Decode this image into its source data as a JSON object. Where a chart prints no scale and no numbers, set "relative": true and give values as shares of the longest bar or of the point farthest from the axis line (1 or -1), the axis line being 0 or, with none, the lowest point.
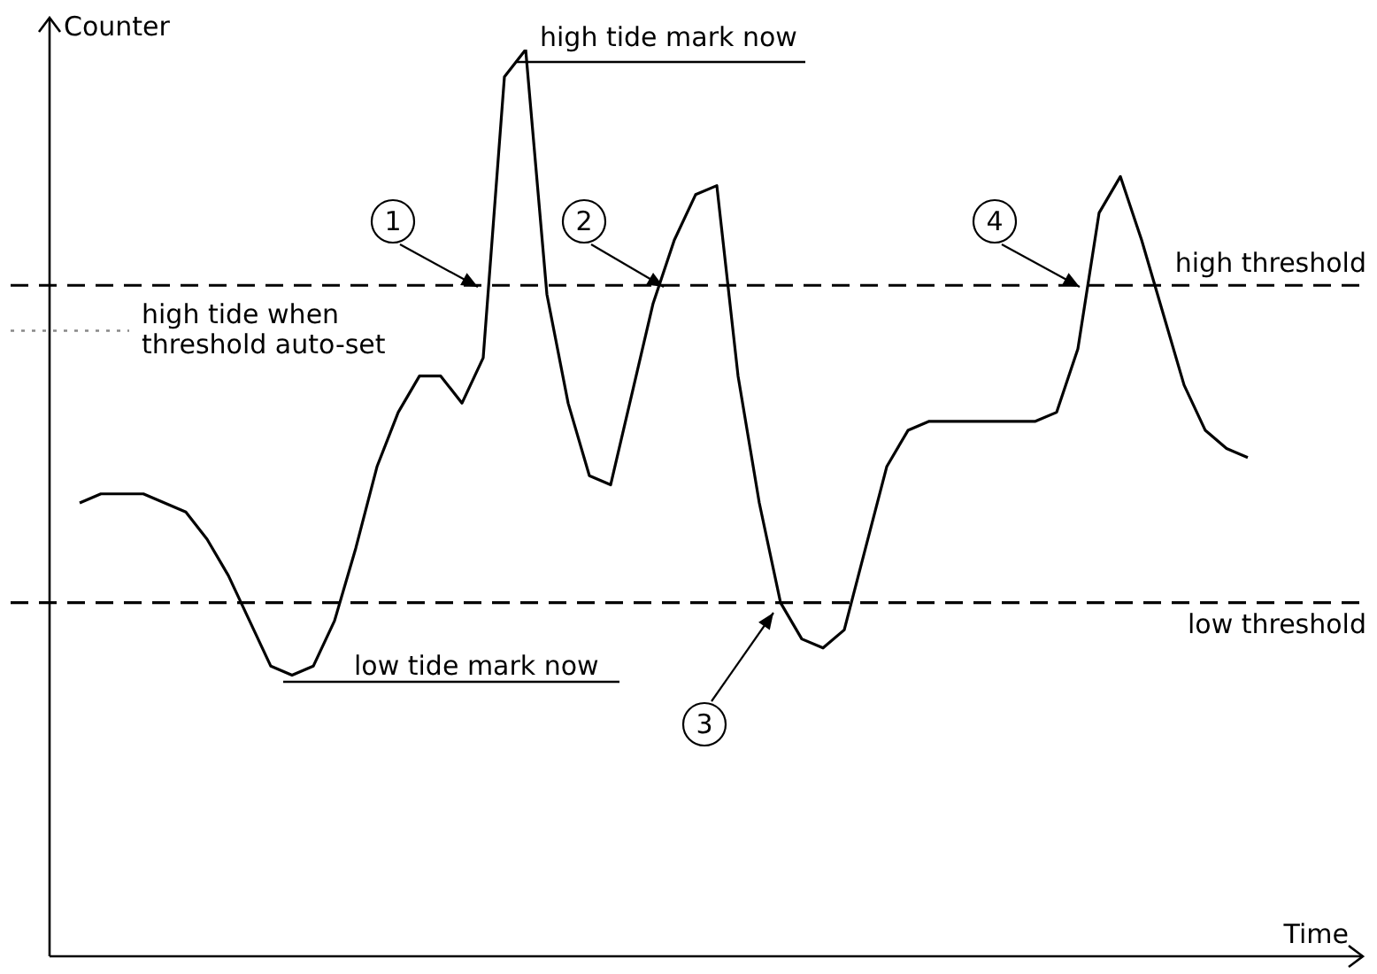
{
  "chart_data": {
    "type": "line",
    "relative": true,
    "xlabel": "Time",
    "ylabel": "Counter",
    "legend": false,
    "marker": "none",
    "line_style": "solid",
    "categories": [
      null,
      null,
      null,
      null,
      null,
      null,
      null,
      null,
      null,
      null,
      null,
      null,
      null,
      null,
      null,
      null,
      null,
      null,
      null,
      null,
      null,
      null,
      null,
      null,
      null,
      null,
      null,
      null,
      null,
      null,
      null,
      null,
      null,
      null,
      null,
      null,
      null,
      null,
      null,
      null,
      null,
      null,
      null,
      null,
      null,
      null,
      null,
      null,
      null,
      null,
      null,
      null,
      null,
      null,
      null,
      null
    ],
    "series": [
      {
        "color": "#000000",
        "values": [
          0.5,
          0.51,
          0.51,
          0.51,
          0.5,
          0.49,
          0.46,
          0.42,
          0.37,
          0.32,
          0.31,
          0.32,
          0.37,
          0.45,
          0.54,
          0.6,
          0.64,
          0.64,
          0.61,
          0.66,
          0.97,
          1,
          0.73,
          0.61,
          0.53,
          0.52,
          0.62,
          0.72,
          0.79,
          0.84,
          0.85,
          0.64,
          0.5,
          0.39,
          0.35,
          0.34,
          0.36,
          0.45,
          0.54,
          0.58,
          0.59,
          0.59,
          0.59,
          0.59,
          0.59,
          0.59,
          0.6,
          0.67,
          0.82,
          0.86,
          0.79,
          0.71,
          0.63,
          0.58,
          0.56,
          0.55
        ]
      }
    ],
    "ref_lines": [
      {
        "axis": "y",
        "value": 0.74,
        "label": "high threshold",
        "line_style": "dashed",
        "color": "#000000"
      },
      {
        "axis": "y",
        "value": 0.39,
        "label": "low threshold",
        "line_style": "dashed",
        "color": "#000000"
      },
      {
        "axis": "y",
        "value": 0.69,
        "label": "high tide when\nthreshold auto-set",
        "line_style": "dotted",
        "color": "#888888"
      }
    ],
    "annotations": [
      "high tide mark now",
      "low tide mark now",
      "1",
      "2",
      "3",
      "4"
    ]
  }
}
